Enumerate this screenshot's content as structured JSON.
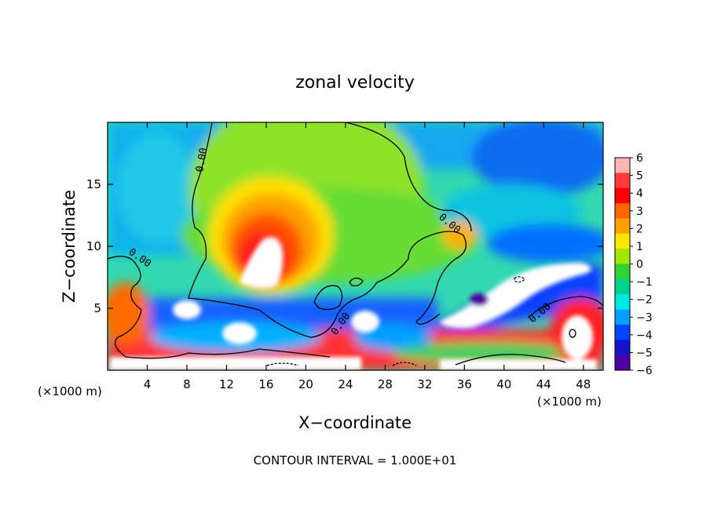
{
  "chart_data": {
    "type": "heatmap",
    "title": "zonal velocity",
    "xlabel": "X−coordinate",
    "ylabel": "Z−coordinate",
    "x_unit_left": "(×1000 m)",
    "x_unit_right": "(×1000 m)",
    "footer": "CONTOUR INTERVAL = 1.000E+01",
    "xlim": [
      0,
      50
    ],
    "ylim": [
      0,
      20
    ],
    "x_ticks": [
      4,
      8,
      12,
      16,
      20,
      24,
      28,
      32,
      36,
      40,
      44,
      48
    ],
    "y_ticks": [
      5,
      10,
      15
    ],
    "colorbar": {
      "levels": [
        6,
        5,
        4,
        3,
        2,
        1,
        0,
        -1,
        -2,
        -3,
        -4,
        -5,
        -6
      ],
      "colors": [
        "#ffb4b4",
        "#ff3c3c",
        "#ff0000",
        "#ff6400",
        "#ffa000",
        "#ffe600",
        "#a0e600",
        "#32d232",
        "#00d28c",
        "#00e6e6",
        "#00a0ff",
        "#0046ff",
        "#1414c8",
        "#5000a0"
      ]
    },
    "contour_label": "0.00",
    "features": [
      {
        "kind": "max",
        "x": 17,
        "z": 8.5,
        "value": 6
      },
      {
        "kind": "max",
        "x": 25.5,
        "z": 4,
        "value": 6
      },
      {
        "kind": "min",
        "x": 40,
        "z": 6,
        "value": -6
      },
      {
        "kind": "max",
        "x": 47,
        "z": 3,
        "value": 6
      },
      {
        "kind": "min",
        "x": 6.5,
        "z": 5,
        "value": -6
      }
    ]
  }
}
